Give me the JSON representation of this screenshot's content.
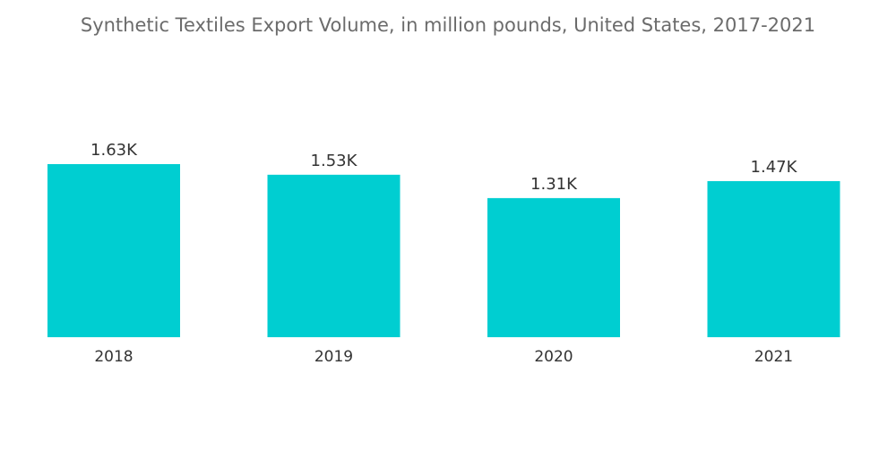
{
  "chart_data": {
    "type": "bar",
    "title": "Synthetic Textiles Export Volume, in million pounds, United States, 2017-2021",
    "categories": [
      "2018",
      "2019",
      "2020",
      "2021"
    ],
    "values": [
      1630,
      1530,
      1310,
      1470
    ],
    "data_labels": [
      "1.63K",
      "1.53K",
      "1.31K",
      "1.47K"
    ],
    "xlabel": "",
    "ylabel": "",
    "ylim": [
      0,
      1630
    ],
    "grid": false,
    "legend": "none",
    "bar_color": "#00CED1"
  }
}
